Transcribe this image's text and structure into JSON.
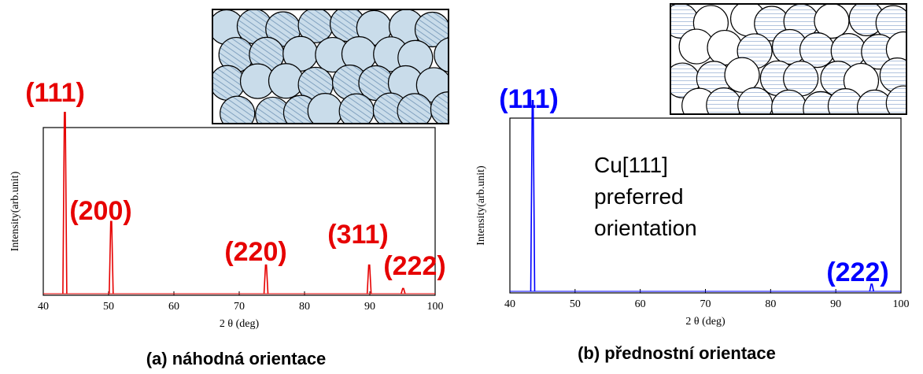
{
  "chart_data": [
    {
      "type": "peaks",
      "color": "#e60000",
      "xlabel": "2 θ (deg)",
      "ylabel": "Intensity(arb.unit)",
      "xlim": [
        40,
        100
      ],
      "xticks": [
        40,
        50,
        60,
        70,
        80,
        90,
        100
      ],
      "ylim": [
        0,
        100
      ],
      "x": [
        43.3,
        50.4,
        74.1,
        89.9,
        95.1
      ],
      "values": [
        109,
        44,
        18,
        18,
        4
      ],
      "peak_labels": [
        "(111)",
        "(200)",
        "(220)",
        "(311)",
        "(222)"
      ],
      "caption": "(a) náhodná orientace"
    },
    {
      "type": "peaks",
      "color": "#0000ff",
      "xlabel": "2 θ (deg)",
      "ylabel": "Intensity(arb.unit)",
      "xlim": [
        40,
        100
      ],
      "xticks": [
        40,
        50,
        60,
        70,
        80,
        90,
        100
      ],
      "ylim": [
        0,
        100
      ],
      "x": [
        43.5,
        95.5
      ],
      "values": [
        110,
        5
      ],
      "peak_labels": [
        "(111)",
        "(222)"
      ],
      "annotation": "Cu[111] preferred orientation",
      "caption": "(b) přednostní orientace"
    }
  ]
}
